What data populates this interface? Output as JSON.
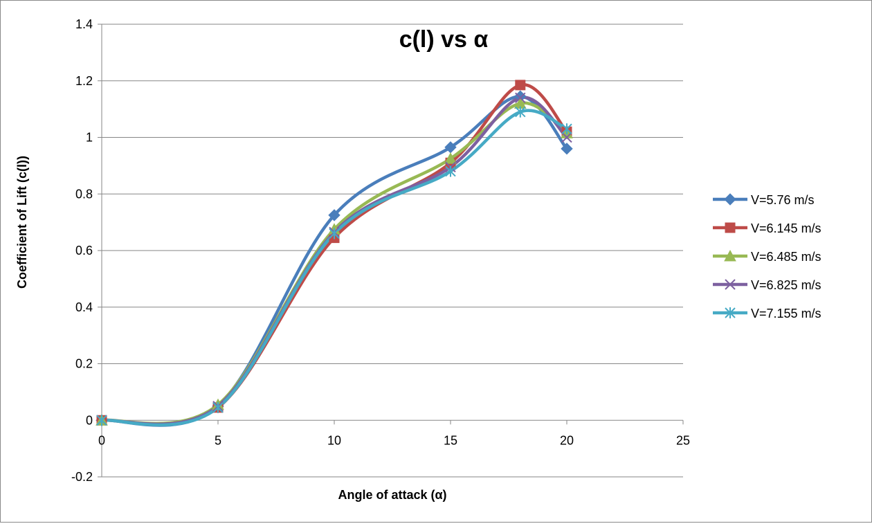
{
  "chart_data": {
    "type": "line",
    "title": "c(l) vs α",
    "xlabel": "Angle of attack (α)",
    "ylabel": "Coefficient of Lift (c(l))",
    "xlim": [
      0,
      25
    ],
    "ylim": [
      -0.2,
      1.4
    ],
    "x_ticks": [
      "0",
      "5",
      "10",
      "15",
      "20",
      "25"
    ],
    "y_ticks": [
      "-0.2",
      "0",
      "0.2",
      "0.4",
      "0.6",
      "0.8",
      "1",
      "1.2",
      "1.4"
    ],
    "grid": "horizontal",
    "legend_position": "right",
    "smooth": true,
    "series": [
      {
        "name": "V=5.76 m/s",
        "color": "#4a7ebb",
        "marker": "diamond",
        "x": [
          0,
          5,
          10,
          15,
          18,
          20
        ],
        "y": [
          0,
          0.05,
          0.725,
          0.965,
          1.145,
          0.96
        ]
      },
      {
        "name": "V=6.145 m/s",
        "color": "#be4b48",
        "marker": "square",
        "x": [
          0,
          5,
          10,
          15,
          18,
          20
        ],
        "y": [
          0,
          0.045,
          0.645,
          0.91,
          1.185,
          1.02
        ]
      },
      {
        "name": "V=6.485 m/s",
        "color": "#98b954",
        "marker": "triangle",
        "x": [
          0,
          5,
          10,
          15,
          18,
          20
        ],
        "y": [
          0,
          0.055,
          0.675,
          0.925,
          1.12,
          1.015
        ]
      },
      {
        "name": "V=6.825 m/s",
        "color": "#7d60a0",
        "marker": "x",
        "x": [
          0,
          5,
          10,
          15,
          18,
          20
        ],
        "y": [
          0,
          0.05,
          0.665,
          0.895,
          1.14,
          1.0
        ]
      },
      {
        "name": "V=7.155 m/s",
        "color": "#46aac5",
        "marker": "star",
        "x": [
          0,
          5,
          10,
          15,
          18,
          20
        ],
        "y": [
          0,
          0.045,
          0.66,
          0.88,
          1.09,
          1.03
        ]
      }
    ]
  }
}
